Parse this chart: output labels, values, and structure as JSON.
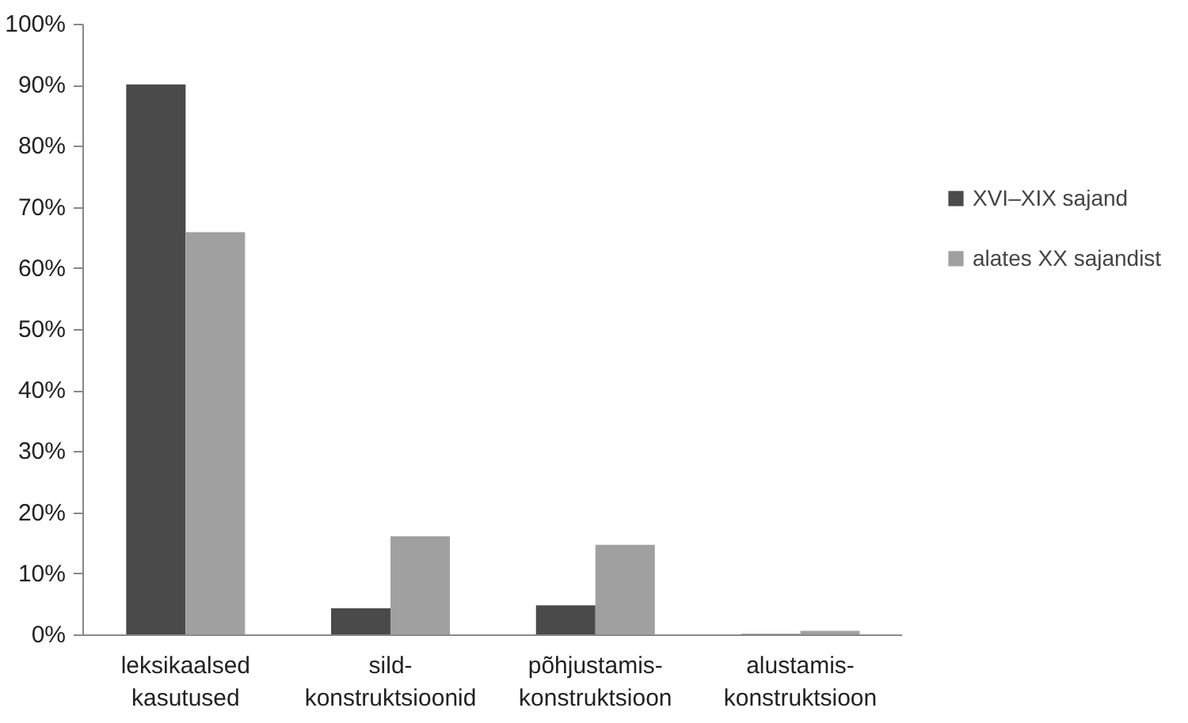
{
  "chart_data": {
    "type": "bar",
    "categories": [
      "leksikaalsed\nkasutused",
      "sild-\nkonstruktsioonid",
      "põhjustamis-\nkonstruktsioon",
      "alustamis-\nkonstruktsioon"
    ],
    "series": [
      {
        "name": "XVI–XIX sajand",
        "color": "#4a4a4a",
        "values": [
          90.2,
          4.4,
          4.9,
          0.2
        ]
      },
      {
        "name": "alates XX sajandist",
        "color": "#a0a0a0",
        "values": [
          66,
          16.2,
          14.8,
          0.7
        ]
      }
    ],
    "ylim": [
      0,
      100
    ],
    "yticks": [
      {
        "value": 0,
        "label": "0%"
      },
      {
        "value": 10,
        "label": "10%"
      },
      {
        "value": 20,
        "label": "20%"
      },
      {
        "value": 30,
        "label": "30%"
      },
      {
        "value": 40,
        "label": "40%"
      },
      {
        "value": 50,
        "label": "50%"
      },
      {
        "value": 60,
        "label": "60%"
      },
      {
        "value": 70,
        "label": "70%"
      },
      {
        "value": 80,
        "label": "80%"
      },
      {
        "value": 90,
        "label": "90%"
      },
      {
        "value": 100,
        "label": "100%"
      }
    ],
    "grid": false,
    "legend": "right"
  }
}
